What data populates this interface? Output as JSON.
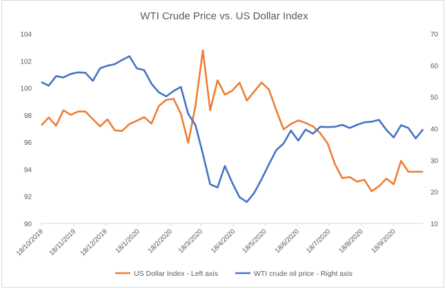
{
  "chart_data": {
    "type": "line",
    "title": "WTI Crude Price vs. US Dollar Index",
    "x_start": "2019-10-18",
    "x_step_days": 7,
    "x_tick_labels": [
      "18/10/2019",
      "18/11/2019",
      "18/12/2019",
      "18/1/2020",
      "18/2/2020",
      "18/3/2020",
      "18/4/2020",
      "18/5/2020",
      "18/6/2020",
      "18/7/2020",
      "18/8/2020",
      "18/9/2020"
    ],
    "x_tick_dates": [
      "2019-10-18",
      "2019-11-18",
      "2019-12-18",
      "2020-01-18",
      "2020-02-18",
      "2020-03-18",
      "2020-04-18",
      "2020-05-18",
      "2020-06-18",
      "2020-07-18",
      "2020-08-18",
      "2020-09-18"
    ],
    "left_axis": {
      "ylim": [
        90,
        104
      ],
      "ticks": [
        90,
        92,
        94,
        96,
        98,
        100,
        102,
        104
      ]
    },
    "right_axis": {
      "ylim": [
        10,
        70
      ],
      "ticks": [
        10,
        20,
        30,
        40,
        50,
        60,
        70
      ]
    },
    "grid": false,
    "legend_position": "bottom",
    "series": [
      {
        "name": "US Dollar Index - Left axis",
        "axis": "left",
        "color": "#ED7D31",
        "values": [
          97.25,
          97.82,
          97.22,
          98.36,
          98.02,
          98.26,
          98.26,
          97.71,
          97.17,
          97.68,
          96.88,
          96.83,
          97.34,
          97.58,
          97.85,
          97.37,
          98.67,
          99.12,
          99.21,
          98.1,
          95.95,
          98.7,
          102.78,
          98.36,
          100.57,
          99.51,
          99.8,
          100.4,
          99.07,
          99.75,
          100.4,
          99.89,
          98.36,
          96.95,
          97.34,
          97.61,
          97.42,
          97.17,
          96.66,
          95.9,
          94.37,
          93.35,
          93.43,
          93.09,
          93.23,
          92.38,
          92.75,
          93.31,
          92.89,
          94.62,
          93.82,
          93.82,
          93.82
        ]
      },
      {
        "name": "WTI crude oil price - Right axis",
        "axis": "right",
        "color": "#4472C4",
        "values": [
          54.7,
          53.6,
          56.6,
          56.2,
          57.3,
          57.8,
          57.7,
          55.1,
          59.1,
          59.9,
          60.4,
          61.7,
          62.9,
          59.1,
          58.5,
          54.2,
          51.5,
          50.2,
          51.9,
          53.2,
          44.7,
          41.1,
          32.0,
          22.4,
          21.4,
          28.2,
          22.9,
          18.3,
          16.8,
          19.7,
          24.0,
          28.7,
          33.2,
          35.3,
          39.4,
          36.2,
          39.7,
          38.4,
          40.6,
          40.5,
          40.6,
          41.2,
          40.2,
          41.2,
          42.0,
          42.2,
          42.8,
          39.6,
          37.2,
          41.1,
          40.2,
          36.9,
          39.8
        ]
      }
    ]
  }
}
